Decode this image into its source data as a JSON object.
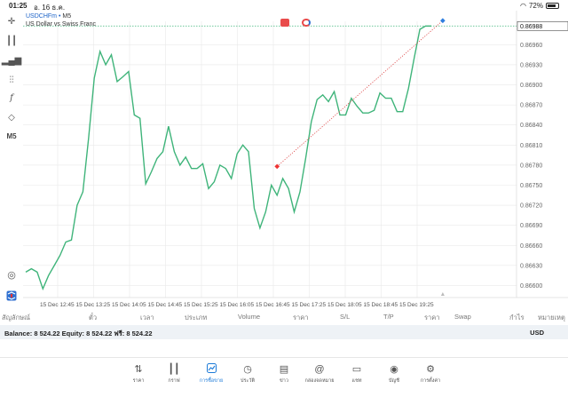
{
  "status": {
    "time": "01:25",
    "date": "อ. 16 ธ.ค.",
    "battery": "72%",
    "battery_level": 0.72
  },
  "chart": {
    "symbol": "USDCHFm",
    "timeframe": "M5",
    "description": "US Dollar vs Swiss Franc",
    "current_price_label": "0.86988",
    "line_color": "#3fb47a",
    "grid_color": "#e9e9e9",
    "price_line_color": "#3fb47a"
  },
  "left_toolbar": {
    "icons": [
      "crosshair-icon",
      "candlestick-icon",
      "bar-chart-icon",
      "indicators-icon",
      "function-icon",
      "objects-icon"
    ],
    "timeframe_label": "M5"
  },
  "chart_data": {
    "type": "line",
    "series": [
      {
        "values": [
          0.8662,
          0.86625,
          0.8662,
          0.86595,
          0.86615,
          0.8663,
          0.86645,
          0.86665,
          0.86668,
          0.8672,
          0.8674,
          0.8682,
          0.8691,
          0.8695,
          0.8693,
          0.86945,
          0.86905,
          0.86912,
          0.8692,
          0.86855,
          0.8685,
          0.86752,
          0.8677,
          0.8679,
          0.868,
          0.86838,
          0.868,
          0.8678,
          0.86792,
          0.86775,
          0.86775,
          0.86782,
          0.86745,
          0.86755,
          0.8678,
          0.86775,
          0.8676,
          0.86797,
          0.8681,
          0.868,
          0.86715,
          0.86686,
          0.8671,
          0.8675,
          0.86735,
          0.8676,
          0.86745,
          0.8671,
          0.8674,
          0.8679,
          0.86845,
          0.86878,
          0.86885,
          0.86875,
          0.8689,
          0.86855,
          0.86855,
          0.8688,
          0.86868,
          0.86858,
          0.86858,
          0.86862,
          0.86888,
          0.8688,
          0.8688,
          0.8686,
          0.8686,
          0.86895,
          0.8694,
          0.86983,
          0.86988,
          0.86988
        ]
      }
    ],
    "x_ticks": [
      "15 Dec 12:45",
      "15 Dec 13:25",
      "15 Dec 14:05",
      "15 Dec 14:45",
      "15 Dec 15:25",
      "15 Dec 16:05",
      "15 Dec 16:45",
      "15 Dec 17:25",
      "15 Dec 18:05",
      "15 Dec 18:45",
      "15 Dec 19:25"
    ],
    "y_ticks": [
      "0.86960",
      "0.86930",
      "0.86900",
      "0.86870",
      "0.86840",
      "0.86810",
      "0.86780",
      "0.86750",
      "0.86720",
      "0.86690",
      "0.86660",
      "0.86630",
      "0.86600"
    ],
    "ylim": [
      0.86582,
      0.86995
    ],
    "current_price": 0.86988,
    "trade_line": {
      "from_index": 44,
      "from_price": 0.86778,
      "to_index": 73,
      "to_price": 0.86996
    },
    "grid": true
  },
  "table_header": [
    "สัญลักษณ์",
    "ตั๋ว",
    "เวลา",
    "ประเภท",
    "Volume",
    "ราคา",
    "S/L",
    "T/P",
    "ราคา",
    "Swap",
    "กำไร",
    "หมายเหตุ"
  ],
  "balance": {
    "text": "Balance: 8 524.22 Equity: 8 524.22 ฟรี: 8 524.22",
    "currency": "USD"
  },
  "tabs": [
    {
      "icon": "quotes-icon",
      "label": "ราคา"
    },
    {
      "icon": "chart-candle-icon",
      "label": "กราฟ"
    },
    {
      "icon": "trade-icon",
      "label": "การซื้อขาย",
      "active": true
    },
    {
      "icon": "history-icon",
      "label": "ประวัติ"
    },
    {
      "icon": "news-icon",
      "label": "ข่าว"
    },
    {
      "icon": "mailbox-icon",
      "label": "กล่องจดหมาย"
    },
    {
      "icon": "chat-icon",
      "label": "แชท"
    },
    {
      "icon": "account-icon",
      "label": "บัญชี"
    },
    {
      "icon": "settings-icon",
      "label": "การตั้งค่า"
    }
  ]
}
